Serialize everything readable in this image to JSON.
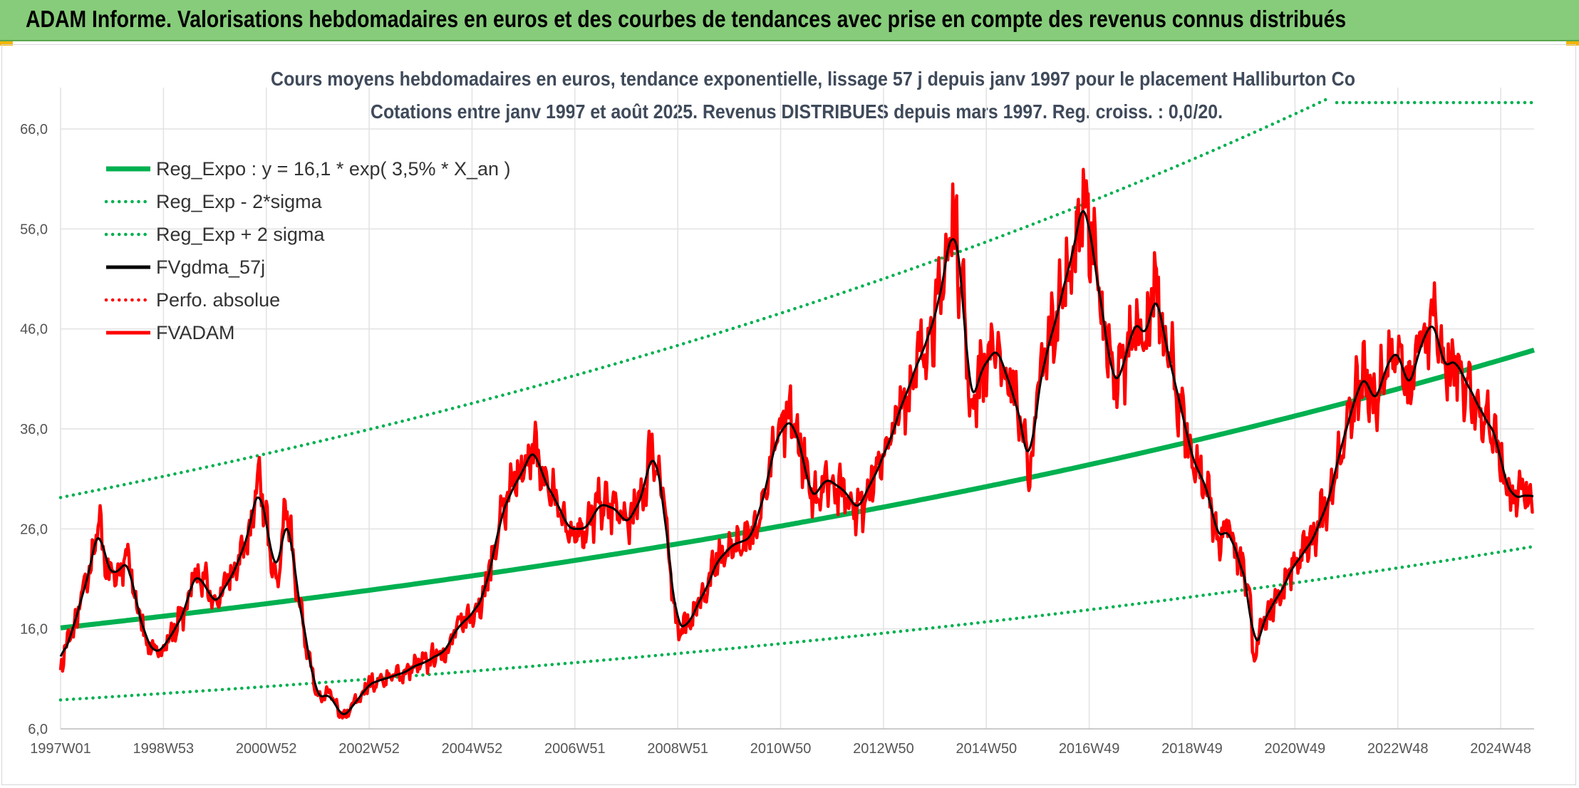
{
  "banner": {
    "title": "ADAM Informe. Valorisations hebdomadaires en euros et des courbes de tendances avec prise en compte des revenus connus distribués"
  },
  "chart_data": {
    "type": "line",
    "title": [
      "Cours moyens hebdomadaires en euros, tendance exponentielle, lissage 57 j depuis janv 1997 pour le placement Halliburton Co",
      "Cotations entre janv 1997 et août 2025. Revenus DISTRIBUES depuis mars 1997. Reg. croiss. : 0,0/20."
    ],
    "xlabel": "",
    "ylabel": "",
    "xlim": [
      1997.0,
      2025.65
    ],
    "ylim": [
      6,
      66
    ],
    "y_ticks": [
      "6,0",
      "16,0",
      "26,0",
      "36,0",
      "46,0",
      "56,0",
      "66,0"
    ],
    "x_ticks": [
      {
        "label": "1997W01",
        "x": 1997.0
      },
      {
        "label": "1998W53",
        "x": 1999.0
      },
      {
        "label": "2000W52",
        "x": 2001.0
      },
      {
        "label": "2002W52",
        "x": 2003.0
      },
      {
        "label": "2004W52",
        "x": 2005.0
      },
      {
        "label": "2006W51",
        "x": 2007.0
      },
      {
        "label": "2008W51",
        "x": 2009.0
      },
      {
        "label": "2010W50",
        "x": 2011.0
      },
      {
        "label": "2012W50",
        "x": 2013.0
      },
      {
        "label": "2014W50",
        "x": 2015.0
      },
      {
        "label": "2016W49",
        "x": 2017.0
      },
      {
        "label": "2018W49",
        "x": 2019.0
      },
      {
        "label": "2020W49",
        "x": 2021.0
      },
      {
        "label": "2022W48",
        "x": 2023.0
      },
      {
        "label": "2024W48",
        "x": 2025.0
      }
    ],
    "grid": true,
    "legend_position": "top-left",
    "regression": {
      "a": 16.1,
      "rate": 0.035,
      "band_factor": 1.81
    },
    "series": [
      {
        "name": "Reg_Expo : y = 16,1 * exp( 3,5% *  X_an )",
        "key": "reg",
        "color": "#00b050",
        "style": "solid"
      },
      {
        "name": "Reg_Exp - 2*sigma",
        "key": "reg_low",
        "color": "#00b050",
        "style": "dotted"
      },
      {
        "name": "Reg_Exp + 2 sigma",
        "key": "reg_high",
        "color": "#00b050",
        "style": "dotted"
      },
      {
        "name": "FVgdma_57j",
        "key": "smooth",
        "color": "#000000",
        "style": "solid"
      },
      {
        "name": "Perfo. absolue",
        "key": "perf",
        "color": "#ff0000",
        "style": "dotted"
      },
      {
        "name": "FVADAM",
        "key": "price",
        "color": "#ff0000",
        "style": "solid"
      }
    ],
    "price_points": [
      [
        1997.0,
        12.5
      ],
      [
        1997.2,
        15.5
      ],
      [
        1997.5,
        20.5
      ],
      [
        1997.75,
        26.5
      ],
      [
        1997.9,
        22.0
      ],
      [
        1998.1,
        21.5
      ],
      [
        1998.3,
        23.0
      ],
      [
        1998.5,
        18.0
      ],
      [
        1998.7,
        14.5
      ],
      [
        1998.9,
        13.5
      ],
      [
        1999.1,
        15.0
      ],
      [
        1999.4,
        17.5
      ],
      [
        1999.6,
        21.5
      ],
      [
        1999.8,
        20.5
      ],
      [
        2000.0,
        18.5
      ],
      [
        2000.3,
        21.0
      ],
      [
        2000.6,
        24.5
      ],
      [
        2000.85,
        30.5
      ],
      [
        2001.0,
        26.5
      ],
      [
        2001.2,
        21.0
      ],
      [
        2001.4,
        28.0
      ],
      [
        2001.6,
        20.0
      ],
      [
        2001.8,
        14.0
      ],
      [
        2002.0,
        9.0
      ],
      [
        2002.2,
        9.5
      ],
      [
        2002.5,
        7.2
      ],
      [
        2002.8,
        9.0
      ],
      [
        2003.0,
        10.5
      ],
      [
        2003.3,
        11.0
      ],
      [
        2003.6,
        11.5
      ],
      [
        2004.0,
        12.5
      ],
      [
        2004.4,
        13.5
      ],
      [
        2004.8,
        16.5
      ],
      [
        2005.0,
        17.5
      ],
      [
        2005.2,
        19.0
      ],
      [
        2005.4,
        23.0
      ],
      [
        2005.6,
        28.0
      ],
      [
        2005.9,
        31.0
      ],
      [
        2006.2,
        34.0
      ],
      [
        2006.4,
        31.0
      ],
      [
        2006.6,
        29.0
      ],
      [
        2006.9,
        26.0
      ],
      [
        2007.2,
        26.0
      ],
      [
        2007.5,
        28.5
      ],
      [
        2007.8,
        28.0
      ],
      [
        2008.0,
        26.5
      ],
      [
        2008.3,
        29.0
      ],
      [
        2008.5,
        34.0
      ],
      [
        2008.7,
        30.0
      ],
      [
        2008.85,
        22.0
      ],
      [
        2009.0,
        16.0
      ],
      [
        2009.2,
        16.5
      ],
      [
        2009.5,
        19.5
      ],
      [
        2009.8,
        23.0
      ],
      [
        2010.1,
        24.5
      ],
      [
        2010.4,
        25.0
      ],
      [
        2010.7,
        29.5
      ],
      [
        2010.9,
        35.0
      ],
      [
        2011.2,
        37.0
      ],
      [
        2011.4,
        34.0
      ],
      [
        2011.6,
        29.0
      ],
      [
        2011.9,
        31.0
      ],
      [
        2012.2,
        30.0
      ],
      [
        2012.5,
        28.0
      ],
      [
        2012.8,
        31.0
      ],
      [
        2013.1,
        34.5
      ],
      [
        2013.4,
        39.0
      ],
      [
        2013.7,
        43.0
      ],
      [
        2014.0,
        47.0
      ],
      [
        2014.2,
        52.0
      ],
      [
        2014.35,
        57.0
      ],
      [
        2014.5,
        52.0
      ],
      [
        2014.7,
        38.0
      ],
      [
        2014.9,
        42.0
      ],
      [
        2015.2,
        44.0
      ],
      [
        2015.5,
        40.0
      ],
      [
        2015.7,
        36.0
      ],
      [
        2015.85,
        31.5
      ],
      [
        2016.0,
        40.0
      ],
      [
        2016.3,
        46.0
      ],
      [
        2016.6,
        52.0
      ],
      [
        2016.9,
        59.0
      ],
      [
        2017.1,
        53.0
      ],
      [
        2017.3,
        46.0
      ],
      [
        2017.5,
        40.0
      ],
      [
        2017.7,
        43.0
      ],
      [
        2017.9,
        47.0
      ],
      [
        2018.1,
        45.0
      ],
      [
        2018.3,
        50.0
      ],
      [
        2018.5,
        44.0
      ],
      [
        2018.8,
        38.0
      ],
      [
        2019.0,
        33.0
      ],
      [
        2019.3,
        30.0
      ],
      [
        2019.5,
        25.0
      ],
      [
        2019.7,
        26.0
      ],
      [
        2019.9,
        23.0
      ],
      [
        2020.1,
        20.0
      ],
      [
        2020.2,
        13.0
      ],
      [
        2020.4,
        17.0
      ],
      [
        2020.7,
        19.5
      ],
      [
        2021.0,
        22.5
      ],
      [
        2021.3,
        24.5
      ],
      [
        2021.6,
        28.0
      ],
      [
        2021.9,
        34.0
      ],
      [
        2022.1,
        38.0
      ],
      [
        2022.35,
        41.5
      ],
      [
        2022.55,
        38.5
      ],
      [
        2022.8,
        42.5
      ],
      [
        2023.0,
        44.0
      ],
      [
        2023.2,
        40.0
      ],
      [
        2023.5,
        45.0
      ],
      [
        2023.7,
        47.0
      ],
      [
        2023.9,
        42.0
      ],
      [
        2024.1,
        43.0
      ],
      [
        2024.3,
        41.0
      ],
      [
        2024.5,
        39.0
      ],
      [
        2024.7,
        37.0
      ],
      [
        2024.9,
        35.5
      ],
      [
        2025.1,
        30.5
      ],
      [
        2025.3,
        29.0
      ],
      [
        2025.5,
        29.5
      ],
      [
        2025.65,
        29.0
      ]
    ]
  }
}
